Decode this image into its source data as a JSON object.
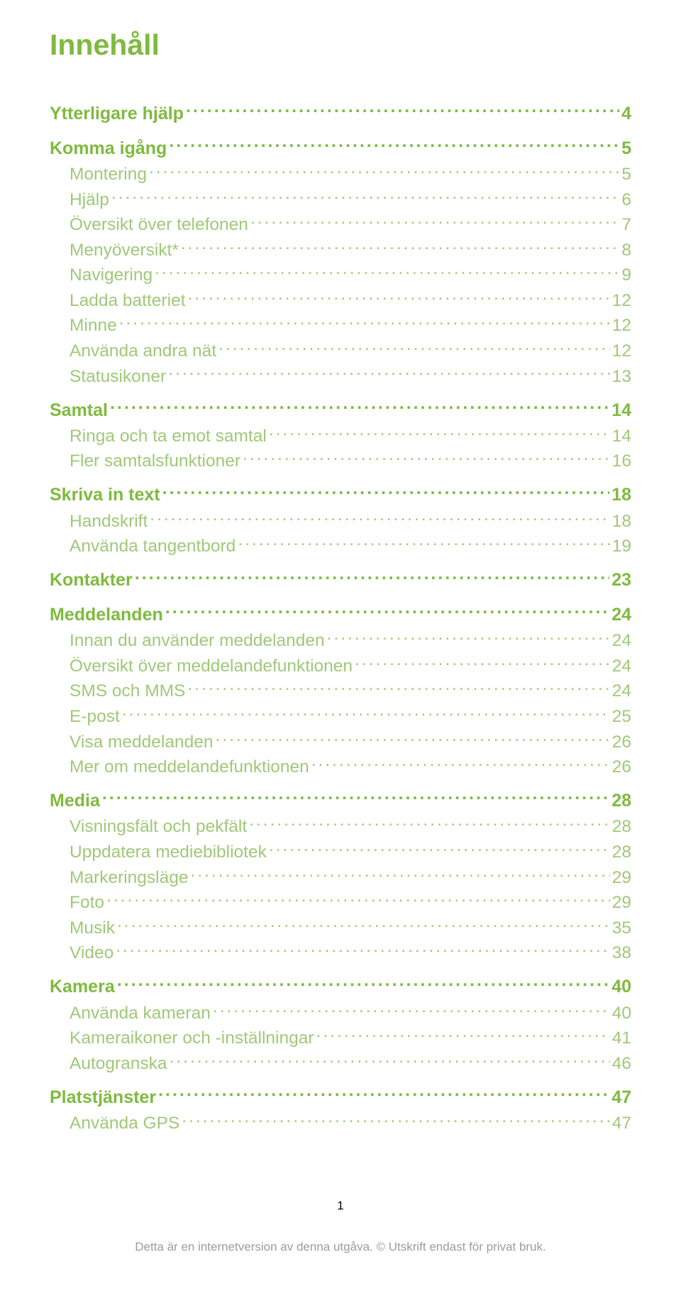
{
  "colors": {
    "heading_green": "#7fba3e",
    "sub_green": "#9fc978",
    "footer_gray": "#9c9c9c",
    "page_black": "#000000",
    "background": "#ffffff"
  },
  "typography": {
    "title_fontsize": 41,
    "lvl0_fontsize": 25,
    "lvl1_fontsize": 24.5,
    "footer_fontsize": 17
  },
  "title": "Innehåll",
  "page_number": "1",
  "footer": "Detta är en internetversion av denna utgåva. © Utskrift endast för privat bruk.",
  "toc": [
    {
      "level": 0,
      "label": "Ytterligare hjälp",
      "page": "4"
    },
    {
      "level": 0,
      "label": "Komma igång",
      "page": "5"
    },
    {
      "level": 1,
      "label": "Montering",
      "page": "5"
    },
    {
      "level": 1,
      "label": "Hjälp",
      "page": "6"
    },
    {
      "level": 1,
      "label": "Översikt över telefonen",
      "page": "7"
    },
    {
      "level": 1,
      "label": "Menyöversikt*",
      "page": "8"
    },
    {
      "level": 1,
      "label": "Navigering",
      "page": "9"
    },
    {
      "level": 1,
      "label": "Ladda batteriet",
      "page": "12"
    },
    {
      "level": 1,
      "label": "Minne",
      "page": "12"
    },
    {
      "level": 1,
      "label": "Använda andra nät",
      "page": "12"
    },
    {
      "level": 1,
      "label": "Statusikoner",
      "page": "13"
    },
    {
      "level": 0,
      "label": "Samtal",
      "page": "14"
    },
    {
      "level": 1,
      "label": "Ringa och ta emot samtal",
      "page": "14"
    },
    {
      "level": 1,
      "label": "Fler samtalsfunktioner",
      "page": "16"
    },
    {
      "level": 0,
      "label": "Skriva in text",
      "page": "18"
    },
    {
      "level": 1,
      "label": "Handskrift",
      "page": "18"
    },
    {
      "level": 1,
      "label": "Använda tangentbord",
      "page": "19"
    },
    {
      "level": 0,
      "label": "Kontakter",
      "page": "23"
    },
    {
      "level": 0,
      "label": "Meddelanden",
      "page": "24"
    },
    {
      "level": 1,
      "label": "Innan du använder meddelanden",
      "page": "24"
    },
    {
      "level": 1,
      "label": "Översikt över meddelandefunktionen",
      "page": "24"
    },
    {
      "level": 1,
      "label": "SMS och MMS",
      "page": "24"
    },
    {
      "level": 1,
      "label": "E-post",
      "page": "25"
    },
    {
      "level": 1,
      "label": "Visa meddelanden",
      "page": "26"
    },
    {
      "level": 1,
      "label": "Mer om meddelandefunktionen",
      "page": "26"
    },
    {
      "level": 0,
      "label": "Media",
      "page": "28"
    },
    {
      "level": 1,
      "label": "Visningsfält och pekfält",
      "page": "28"
    },
    {
      "level": 1,
      "label": "Uppdatera mediebibliotek",
      "page": "28"
    },
    {
      "level": 1,
      "label": "Markeringsläge",
      "page": "29"
    },
    {
      "level": 1,
      "label": "Foto",
      "page": "29"
    },
    {
      "level": 1,
      "label": "Musik",
      "page": "35"
    },
    {
      "level": 1,
      "label": "Video",
      "page": "38"
    },
    {
      "level": 0,
      "label": "Kamera",
      "page": "40"
    },
    {
      "level": 1,
      "label": "Använda kameran",
      "page": "40"
    },
    {
      "level": 1,
      "label": "Kameraikoner och -inställningar",
      "page": "41"
    },
    {
      "level": 1,
      "label": "Autogranska",
      "page": "46"
    },
    {
      "level": 0,
      "label": "Platstjänster",
      "page": "47"
    },
    {
      "level": 1,
      "label": "Använda GPS",
      "page": "47"
    }
  ]
}
